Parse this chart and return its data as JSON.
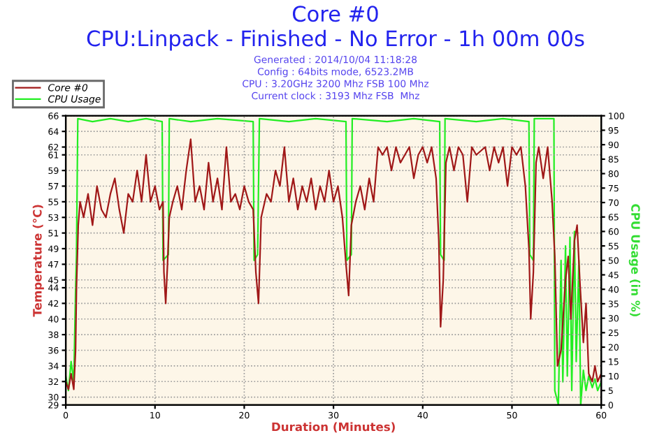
{
  "chart_data": {
    "type": "line",
    "title": "Core #0",
    "subtitle": "CPU:Linpack - Finished - No Error - 1h 00m 00s",
    "annotations": [
      "Generated : 2014/10/04 11:18:28",
      "Config : 64bits mode, 6523.2MB",
      "CPU : 3.20GHz 3200 Mhz FSB 100 Mhz",
      "Current clock : 3193 Mhz FSB  Mhz"
    ],
    "xlabel": "Duration (Minutes)",
    "ylabel": "Temperature (°C)",
    "y2label": "CPU Usage (in %)",
    "xlim": [
      0,
      60
    ],
    "xticks": [
      0,
      10,
      20,
      30,
      40,
      50,
      60
    ],
    "ylim": [
      29,
      66
    ],
    "yticks": [
      29,
      30,
      32,
      34,
      36,
      38,
      40,
      42,
      44,
      45,
      47,
      49,
      51,
      53,
      55,
      57,
      59,
      61,
      62,
      64,
      66
    ],
    "y2lim": [
      0,
      100
    ],
    "y2ticks": [
      0,
      5,
      10,
      15,
      20,
      25,
      30,
      35,
      40,
      45,
      50,
      55,
      60,
      65,
      70,
      75,
      80,
      85,
      90,
      95,
      100
    ],
    "grid": true,
    "legend": "top left",
    "marker": "none",
    "line_style": "solid",
    "series": [
      {
        "name": "Core #0",
        "color": "#a01818",
        "x": [
          0,
          0.3,
          0.6,
          0.9,
          1.1,
          1.2,
          1.4,
          1.6,
          2,
          2.5,
          3,
          3.5,
          4,
          4.5,
          5,
          5.5,
          6,
          6.5,
          7,
          7.5,
          8,
          8.5,
          9,
          9.5,
          10,
          10.5,
          10.9,
          11,
          11.2,
          11.4,
          11.6,
          12,
          12.5,
          13,
          13.5,
          14,
          14.5,
          15,
          15.5,
          16,
          16.5,
          17,
          17.5,
          18,
          18.5,
          19,
          19.5,
          20,
          20.5,
          21,
          21.3,
          21.6,
          21.9,
          22.5,
          23,
          23.5,
          24,
          24.5,
          25,
          25.5,
          26,
          26.5,
          27,
          27.5,
          28,
          28.5,
          29,
          29.5,
          30,
          30.5,
          31,
          31.4,
          31.7,
          32,
          32.5,
          33,
          33.5,
          34,
          34.5,
          35,
          35.5,
          36,
          36.5,
          37,
          37.5,
          38,
          38.5,
          39,
          39.5,
          40,
          40.5,
          41,
          41.5,
          41.8,
          42,
          42.3,
          42.6,
          43,
          43.5,
          44,
          44.5,
          45,
          45.5,
          46,
          47,
          47.5,
          48,
          48.5,
          49,
          49.5,
          50,
          50.5,
          51,
          51.5,
          51.9,
          52.1,
          52.4,
          52.7,
          53,
          53.5,
          54,
          54.5,
          54.8,
          55.1,
          55.5,
          56,
          56.3,
          56.6,
          57,
          57.3,
          57.6,
          58,
          58.3,
          58.6,
          59,
          59.3,
          59.6,
          60
        ],
        "values": [
          32,
          31,
          33,
          31,
          36,
          44,
          52,
          55,
          53,
          56,
          52,
          57,
          54,
          53,
          56,
          58,
          54,
          51,
          56,
          55,
          59,
          55,
          61,
          55,
          57,
          54,
          55,
          46,
          42,
          47,
          53,
          55,
          57,
          54,
          59,
          63,
          55,
          57,
          54,
          60,
          55,
          58,
          54,
          62,
          55,
          56,
          54,
          57,
          55,
          54,
          46,
          42,
          53,
          56,
          55,
          59,
          57,
          62,
          55,
          58,
          54,
          57,
          55,
          58,
          54,
          57,
          55,
          59,
          55,
          57,
          53,
          47,
          43,
          52,
          55,
          57,
          54,
          58,
          55,
          62,
          61,
          62,
          59,
          62,
          60,
          61,
          62,
          58,
          61,
          62,
          60,
          62,
          58,
          50,
          39,
          45,
          60,
          62,
          59,
          62,
          61,
          55,
          62,
          61,
          62,
          59,
          62,
          60,
          62,
          57,
          62,
          61,
          62,
          57,
          49,
          40,
          46,
          60,
          62,
          58,
          62,
          55,
          48,
          34,
          36,
          45,
          48,
          40,
          50,
          52,
          45,
          37,
          42,
          33,
          32,
          34,
          32,
          33
        ]
      },
      {
        "name": "CPU Usage",
        "color": "#22ee22",
        "axis": "y2",
        "x": [
          0,
          0.3,
          0.6,
          0.9,
          1.1,
          1.2,
          1.35,
          3,
          5,
          7,
          9,
          10.8,
          10.9,
          11.5,
          11.6,
          14,
          17,
          21,
          21.1,
          21.5,
          21.7,
          25,
          28,
          31.4,
          31.5,
          32,
          32.1,
          36,
          39,
          41.9,
          42,
          42.4,
          42.5,
          46,
          49,
          51.9,
          52,
          52.4,
          52.5,
          54.7,
          54.8,
          55.2,
          55.5,
          55.7,
          56,
          56.2,
          56.5,
          56.7,
          57,
          57.2,
          57.5,
          57.7,
          58,
          58.3,
          58.6,
          59,
          59.3,
          59.6,
          60
        ],
        "values": [
          10,
          5,
          15,
          8,
          40,
          52,
          99,
          98,
          99,
          98,
          99,
          98,
          50,
          52,
          99,
          98,
          99,
          98,
          50,
          52,
          99,
          98,
          99,
          98,
          50,
          52,
          99,
          98,
          99,
          98,
          52,
          50,
          99,
          98,
          99,
          98,
          52,
          50,
          99,
          99,
          5,
          0,
          50,
          8,
          55,
          10,
          58,
          5,
          60,
          15,
          50,
          0,
          12,
          5,
          10,
          6,
          9,
          5,
          8
        ]
      }
    ]
  }
}
